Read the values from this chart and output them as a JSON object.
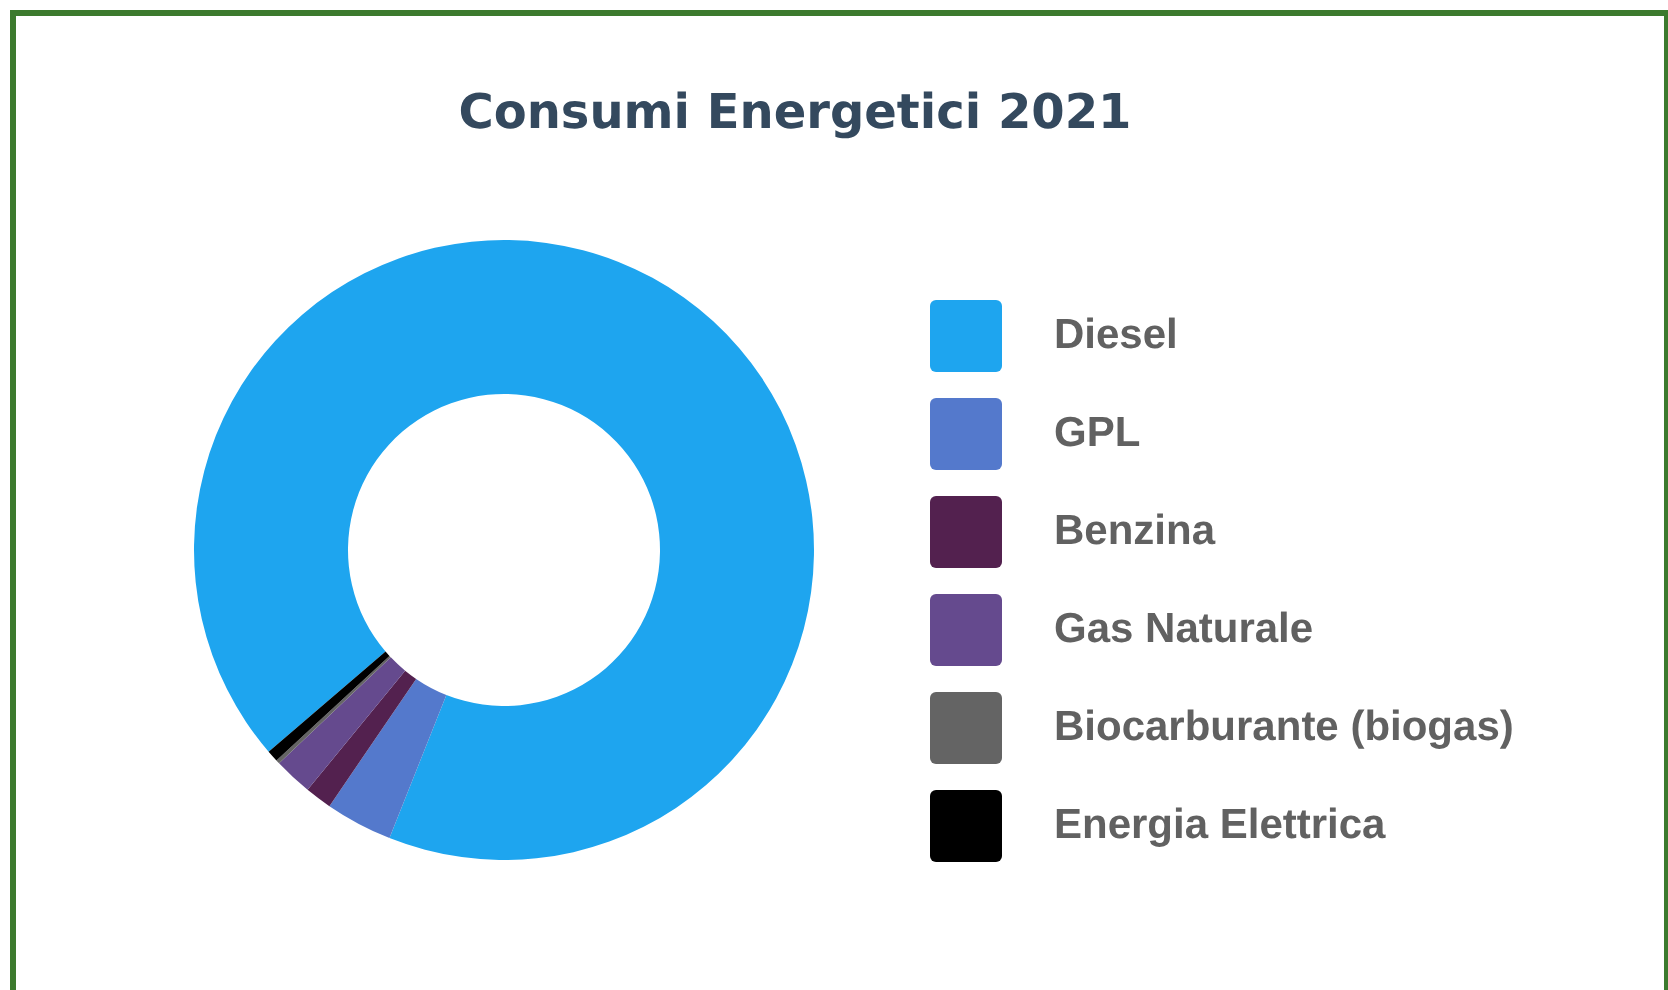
{
  "chart_data": {
    "type": "donut",
    "title": "Consumi Energetici 2021",
    "categories": [
      "Diesel",
      "GPL",
      "Benzina",
      "Gas Naturale",
      "Biocarburante (biogas)",
      "Energia Elettrica"
    ],
    "values": [
      92.3,
      3.5,
      1.4,
      2.0,
      0.2,
      0.6
    ],
    "colors": [
      "#1ea5ef",
      "#5479cc",
      "#53214f",
      "#654a8e",
      "#646464",
      "#000000"
    ],
    "legend": "right"
  }
}
